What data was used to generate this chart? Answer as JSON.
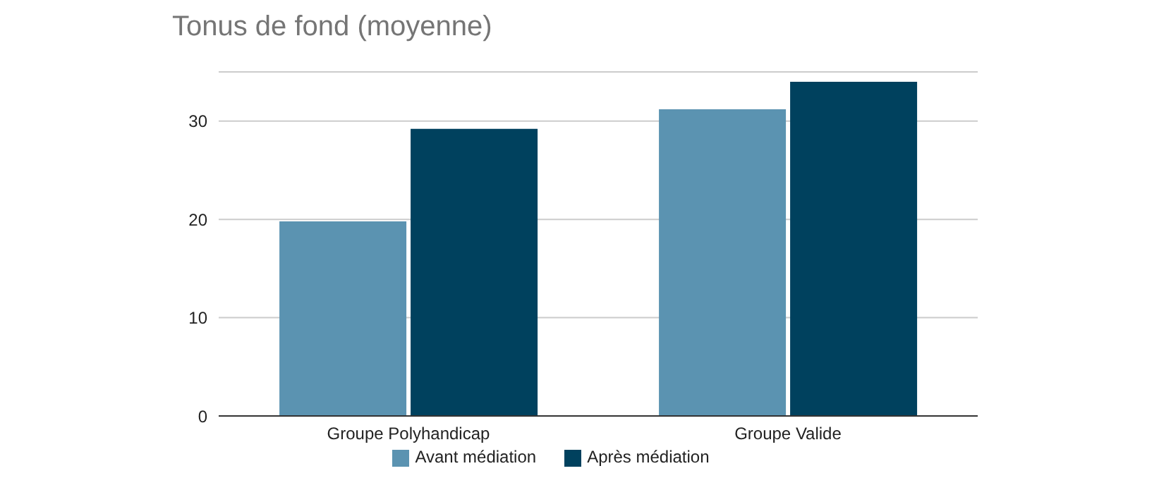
{
  "chart_data": {
    "type": "bar",
    "title": "Tonus de fond (moyenne)",
    "categories": [
      "Groupe Polyhandicap",
      "Groupe Valide"
    ],
    "series": [
      {
        "name": "Avant médiation",
        "color": "#5b93b1",
        "values": [
          19.8,
          31.2
        ]
      },
      {
        "name": "Après médiation",
        "color": "#00415e",
        "values": [
          29.2,
          34.0
        ]
      }
    ],
    "ylim": [
      0,
      35
    ],
    "yticks": [
      0,
      10,
      20,
      30
    ],
    "grid": "y",
    "legend": "bottom"
  }
}
